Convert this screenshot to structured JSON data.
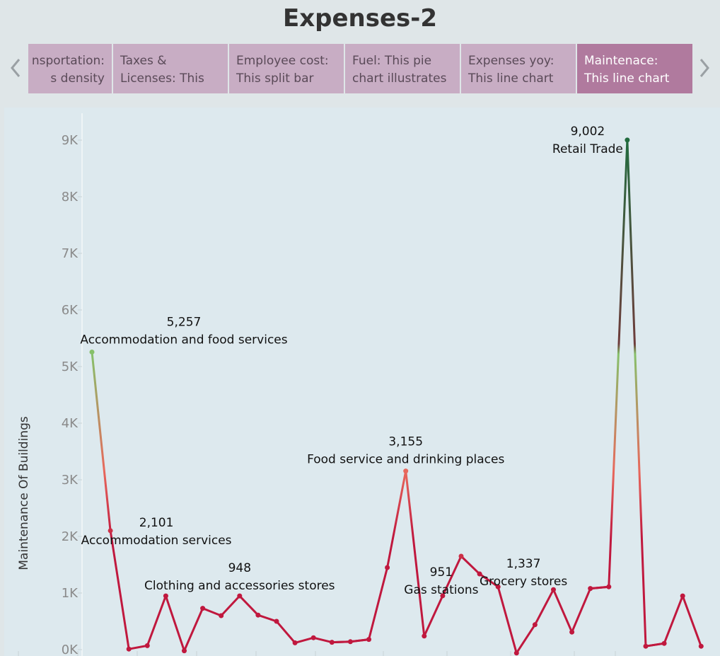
{
  "title": "Expenses-2",
  "nav": {
    "prev_icon": "chevron-left-icon",
    "next_icon": "chevron-right-icon"
  },
  "story_points": [
    {
      "line1": "nsportation:",
      "line2": "s density",
      "active": false
    },
    {
      "line1": "Taxes &",
      "line2": "Licenses: This",
      "active": false
    },
    {
      "line1": "Employee cost:",
      "line2": "This split bar",
      "active": false
    },
    {
      "line1": "Fuel: This pie",
      "line2": "chart illustrates",
      "active": false
    },
    {
      "line1": "Expenses yoy:",
      "line2": "This line chart",
      "active": false
    },
    {
      "line1": "Maintenace:",
      "line2": "This line chart",
      "active": true
    }
  ],
  "colors": {
    "active_tab": "#b07a9e",
    "inactive_tab": "#c8adc4",
    "line_low": "#c0183e",
    "line_mid": "#e8685c",
    "line_high_green": "#86c06a",
    "line_peak": "#226b3e"
  },
  "chart_data": {
    "type": "line",
    "ylabel": "Maintenance Of Buildings",
    "ylim": [
      0,
      9400
    ],
    "yticks": [
      "0K",
      "1K",
      "2K",
      "3K",
      "4K",
      "5K",
      "6K",
      "7K",
      "8K",
      "9K"
    ],
    "ytick_values": [
      0,
      1000,
      2000,
      3000,
      4000,
      5000,
      6000,
      7000,
      8000,
      9000
    ],
    "grid": false,
    "values": [
      5257,
      2101,
      10,
      70,
      948,
      -20,
      730,
      600,
      948,
      610,
      500,
      120,
      210,
      130,
      140,
      180,
      1450,
      3155,
      240,
      951,
      1650,
      1337,
      1110,
      -60,
      440,
      1060,
      310,
      1080,
      1110,
      9002,
      60,
      110,
      948,
      60
    ],
    "annotations": [
      {
        "index": 0,
        "value": "5,257",
        "label": "Accommodation and food services"
      },
      {
        "index": 1,
        "value": "2,101",
        "label": "Accommodation services"
      },
      {
        "index": 8,
        "value": "948",
        "label": "Clothing and accessories stores"
      },
      {
        "index": 17,
        "value": "3,155",
        "label": "Food service and drinking places"
      },
      {
        "index": 19,
        "value": "951",
        "label": "Gas stations"
      },
      {
        "index": 21,
        "value": "1,337",
        "label": "Grocery stores"
      },
      {
        "index": 29,
        "value": "9,002",
        "label": "Retail Trade"
      }
    ]
  }
}
